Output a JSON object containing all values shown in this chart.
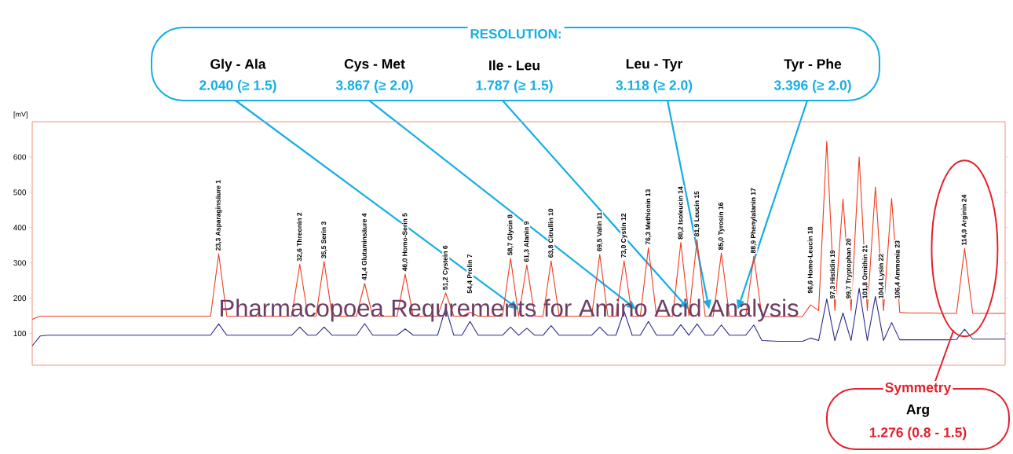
{
  "chart_data": {
    "type": "line",
    "title": "Pharmacopoea Requrements for Amino Acid Analysis",
    "ylabel": "[mV]",
    "ylim": [
      10,
      700
    ],
    "yticks": [
      100,
      200,
      300,
      400,
      500,
      600
    ],
    "tick_labels": "y",
    "line_style": "solid",
    "categories": [
      null,
      null,
      null,
      null,
      null,
      null,
      null,
      null,
      null,
      null,
      null,
      null,
      null,
      null,
      null,
      null,
      null,
      null,
      null,
      null,
      null,
      null,
      null,
      null,
      null,
      null,
      null,
      null,
      null,
      null,
      null,
      null,
      null,
      null,
      null,
      null,
      null,
      null,
      null,
      null,
      null,
      null,
      null,
      null,
      null,
      null,
      null,
      null,
      null,
      null,
      null,
      null,
      null,
      null,
      null,
      null,
      null,
      null,
      null,
      null,
      null,
      null,
      null,
      null,
      null,
      null,
      null,
      null,
      null,
      null,
      null,
      null,
      null,
      null,
      null,
      null,
      null,
      null,
      null,
      null,
      null,
      null,
      null,
      null,
      null,
      null,
      null,
      null,
      null,
      null,
      null,
      null,
      null,
      null,
      null,
      null,
      null,
      null,
      null,
      null,
      null,
      null,
      null,
      null,
      null,
      null,
      null,
      null,
      null,
      null,
      null,
      null,
      null,
      null,
      null,
      null,
      null,
      null,
      null,
      null,
      null
    ],
    "series": [
      {
        "color": "#f03c1e",
        "values": [
          140,
          149,
          149,
          149,
          149,
          149,
          149,
          149,
          149,
          149,
          149,
          149,
          149,
          149,
          149,
          149,
          149,
          149,
          149,
          149,
          149,
          149,
          149,
          326,
          149,
          149,
          149,
          149,
          149,
          149,
          149,
          149,
          149,
          296,
          149,
          149,
          304,
          149,
          149,
          149,
          149,
          242,
          149,
          149,
          149,
          149,
          268,
          149,
          149,
          149,
          149,
          215,
          149,
          149,
          160,
          149,
          149,
          149,
          149,
          313,
          149,
          294,
          149,
          149,
          306,
          149,
          149,
          149,
          149,
          149,
          324,
          149,
          149,
          306,
          149,
          149,
          343,
          149,
          149,
          149,
          358,
          150,
          366,
          149,
          149,
          328,
          149,
          149,
          149,
          319,
          148,
          148,
          148,
          148,
          148,
          148,
          181,
          165,
          645,
          165,
          481,
          165,
          600,
          165,
          515,
          165,
          483,
          160,
          158,
          158,
          158,
          158,
          157,
          157,
          157,
          341,
          157,
          157,
          157,
          157,
          157
        ]
      },
      {
        "color": "#2b2a8c",
        "values": [
          65,
          93,
          95,
          95,
          95,
          95,
          95,
          95,
          95,
          95,
          95,
          95,
          95,
          95,
          95,
          95,
          95,
          95,
          95,
          95,
          95,
          95,
          95,
          127,
          95,
          95,
          95,
          95,
          95,
          95,
          95,
          95,
          95,
          118,
          95,
          95,
          118,
          95,
          95,
          95,
          95,
          128,
          95,
          95,
          95,
          95,
          113,
          95,
          95,
          95,
          95,
          173,
          95,
          95,
          134,
          95,
          95,
          95,
          95,
          118,
          95,
          115,
          95,
          95,
          122,
          95,
          95,
          95,
          95,
          95,
          118,
          95,
          95,
          163,
          95,
          95,
          134,
          95,
          95,
          95,
          125,
          95,
          127,
          95,
          95,
          124,
          95,
          95,
          95,
          124,
          80,
          79,
          78,
          78,
          78,
          78,
          87,
          80,
          198,
          80,
          158,
          80,
          228,
          80,
          205,
          80,
          131,
          82,
          82,
          82,
          82,
          82,
          82,
          82,
          83,
          112,
          84,
          84,
          84,
          84,
          84
        ]
      }
    ],
    "annotations": [
      "23,3 Asparaginsäure   1",
      "32,6 Threonin   2",
      "35,5 Serin   3",
      "41,4 Glutaminsäure   4",
      "46,0 Homo-Serin   5",
      "51,2 Cystein   6",
      "54,4 Prolin   7",
      "58,7 Glycin   8",
      "61,3 Alanin   9",
      "63,8 Citrullin   10",
      "69,5 Valin   11",
      "73,0 Cystin   12",
      "76,3 Methionin   13",
      "80,2 Isoleucin   14",
      "81,9 Leucin   15",
      "85,0 Tyrosin   16",
      "88,9 Phenylalanin   17",
      "96,6 Homo-Leucin   18",
      "97,3 Histidin   19",
      "99,7 Tryptophan   20",
      "101,8 Ornithin   21",
      "104,4 Lysin   22",
      "106,4 Ammonia   23",
      "114,9 Arginin   24",
      "RESOLUTION:",
      "Gly - Ala",
      "2.040 (≥ 1.5)",
      "Cys - Met",
      "3.867 (≥ 2.0)",
      "Ile - Leu",
      "1.787 (≥ 1.5)",
      "Leu - Tyr",
      "3.118 (≥ 2.0)",
      "Tyr - Phe",
      "3.396 (≥ 2.0)",
      "Symmetry",
      "Arg",
      "1.276 (0.8 - 1.5)"
    ]
  }
}
